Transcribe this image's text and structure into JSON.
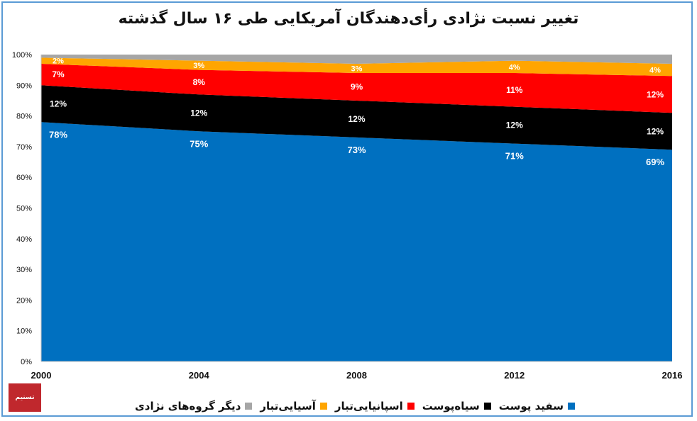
{
  "chart_data": {
    "type": "area",
    "stacked": true,
    "title": "تغییر نسبت نژادی رأی‌دهندگان آمریکایی طی ۱۶ سال گذشته",
    "x": [
      "2000",
      "2004",
      "2008",
      "2012",
      "2016"
    ],
    "y_ticks": [
      "0%",
      "10%",
      "20%",
      "30%",
      "40%",
      "50%",
      "60%",
      "70%",
      "80%",
      "90%",
      "100%"
    ],
    "ylim": [
      0,
      100
    ],
    "grid": false,
    "legend_position": "bottom",
    "series": [
      {
        "name": "سفید پوست",
        "color": "#0070c0",
        "label_color": "#ffffff",
        "values": [
          78,
          75,
          73,
          71,
          69
        ],
        "labels": [
          "78%",
          "75%",
          "73%",
          "71%",
          "69%"
        ]
      },
      {
        "name": "سیاه‌پوست",
        "color": "#000000",
        "label_color": "#ffffff",
        "values": [
          12,
          12,
          12,
          12,
          12
        ],
        "labels": [
          "12%",
          "12%",
          "12%",
          "12%",
          "12%"
        ]
      },
      {
        "name": "اسپانیایی‌تبار",
        "color": "#ff0000",
        "label_color": "#ffffff",
        "values": [
          7,
          8,
          9,
          11,
          12
        ],
        "labels": [
          "7%",
          "8%",
          "9%",
          "11%",
          "12%"
        ]
      },
      {
        "name": "آسیایی‌تبار",
        "color": "#ffa500",
        "label_color": "#ffffff",
        "values": [
          2,
          3,
          3,
          4,
          4
        ],
        "labels": [
          "2%",
          "3%",
          "3%",
          "4%",
          "4%"
        ]
      },
      {
        "name": "دیگر گروه‌های نژادی",
        "color": "#a6a6a6",
        "label_color": "#ffffff",
        "values": [
          1,
          2,
          3,
          2,
          3
        ],
        "labels": []
      }
    ]
  },
  "logo": {
    "text": "تسنیم"
  }
}
